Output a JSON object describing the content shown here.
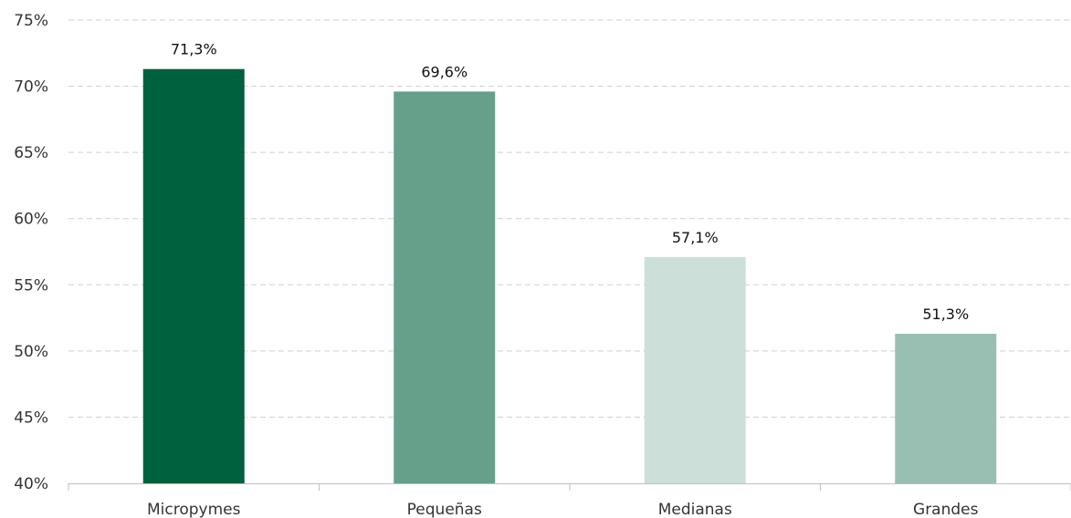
{
  "chart_data": {
    "type": "bar",
    "categories": [
      "Micropymes",
      "Pequeñas",
      "Medianas",
      "Grandes"
    ],
    "values": [
      71.3,
      69.6,
      57.1,
      51.3
    ],
    "value_labels": [
      "71,3%",
      "69,6%",
      "57,1%",
      "51,3%"
    ],
    "bar_colors": [
      "#00613F",
      "#669F8A",
      "#CCE0D9",
      "#99BFB2"
    ],
    "ylim": [
      40,
      75
    ],
    "yticks": [
      40,
      45,
      50,
      55,
      60,
      65,
      70,
      75
    ],
    "ytick_labels": [
      "40%",
      "45%",
      "50%",
      "55%",
      "60%",
      "65%",
      "70%",
      "75%"
    ],
    "grid": true,
    "legend": "none",
    "title": "",
    "xlabel": "",
    "ylabel": ""
  }
}
